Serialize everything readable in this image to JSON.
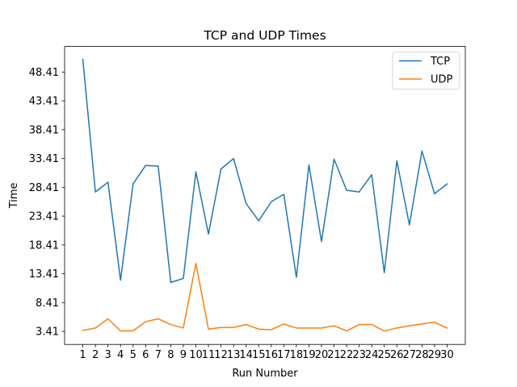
{
  "chart_data": {
    "type": "line",
    "title": "TCP and UDP Times",
    "xlabel": "Run Number",
    "ylabel": "Time",
    "x": [
      1,
      2,
      3,
      4,
      5,
      6,
      7,
      8,
      9,
      10,
      11,
      12,
      13,
      14,
      15,
      16,
      17,
      18,
      19,
      20,
      21,
      22,
      23,
      24,
      25,
      26,
      27,
      28,
      29,
      30
    ],
    "xticks": [
      "1",
      "2",
      "3",
      "4",
      "5",
      "6",
      "7",
      "8",
      "9",
      "10",
      "11",
      "12",
      "13",
      "14",
      "15",
      "16",
      "17",
      "18",
      "19",
      "20",
      "21",
      "22",
      "23",
      "24",
      "25",
      "26",
      "27",
      "28",
      "29",
      "30"
    ],
    "yticks": [
      3.41,
      8.41,
      13.41,
      18.41,
      23.41,
      28.41,
      33.41,
      38.41,
      43.41,
      48.41
    ],
    "ytick_labels": [
      "3.41",
      "8.41",
      "13.41",
      "18.41",
      "23.41",
      "28.41",
      "33.41",
      "38.41",
      "43.41",
      "48.41"
    ],
    "xlim": [
      -0.45,
      31.45
    ],
    "ylim": [
      1.15,
      52.85
    ],
    "grid": false,
    "legend_position": "top-right",
    "series": [
      {
        "name": "TCP",
        "color": "#1f77b4",
        "values": [
          50.6,
          27.6,
          29.3,
          12.3,
          29.0,
          32.2,
          32.1,
          11.9,
          12.6,
          31.1,
          20.3,
          31.6,
          33.4,
          25.6,
          22.6,
          25.9,
          27.2,
          12.8,
          32.3,
          19.0,
          33.3,
          27.9,
          27.6,
          30.6,
          13.6,
          33.0,
          21.9,
          34.7,
          27.3,
          29.0
        ]
      },
      {
        "name": "UDP",
        "color": "#ff7f0e",
        "values": [
          3.6,
          4.0,
          5.6,
          3.5,
          3.5,
          5.1,
          5.6,
          4.6,
          4.0,
          15.2,
          3.8,
          4.1,
          4.1,
          4.6,
          3.8,
          3.7,
          4.7,
          4.0,
          4.0,
          4.0,
          4.4,
          3.5,
          4.6,
          4.6,
          3.5,
          4.0,
          4.4,
          4.7,
          5.0,
          4.0
        ]
      }
    ]
  }
}
